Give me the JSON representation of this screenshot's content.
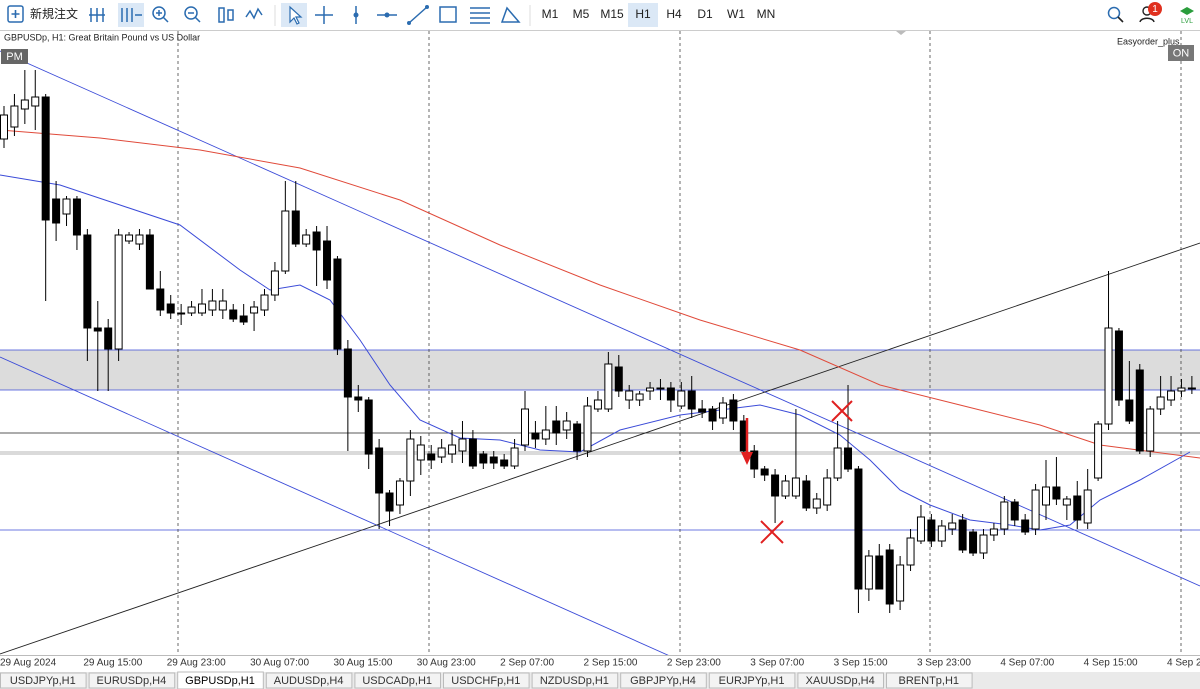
{
  "toolbar": {
    "new_order": "新規注文",
    "timeframes": [
      "M1",
      "M5",
      "M15",
      "H1",
      "H4",
      "D1",
      "W1",
      "MN"
    ],
    "active_timeframe": 3,
    "notifications": 1
  },
  "chart_header": {
    "symbol": "GBPUSDp, H1:  Great Britain Pound vs US Dollar",
    "expert": "Easyorder_plus",
    "left_badge": "PM",
    "right_badge": "ON"
  },
  "chart_data": {
    "type": "candlestick",
    "categories": [
      "29 Aug 2024",
      null,
      null,
      null,
      null,
      null,
      null,
      null,
      "29 Aug 15:00",
      null,
      null,
      null,
      null,
      null,
      null,
      null,
      "29 Aug 23:00",
      null,
      null,
      null,
      null,
      null,
      null,
      null,
      "30 Aug 07:00",
      null,
      null,
      null,
      null,
      null,
      null,
      null,
      "30 Aug 15:00",
      null,
      null,
      null,
      null,
      null,
      null,
      null,
      "30 Aug 23:00",
      null,
      null,
      null,
      null,
      null,
      null,
      null,
      "2 Sep 07:00",
      null,
      null,
      null,
      null,
      null,
      null,
      null,
      "2 Sep 15:00",
      null,
      null,
      null,
      null,
      null,
      null,
      null,
      "2 Sep 23:00",
      null,
      null,
      null,
      null,
      null,
      null,
      null,
      "3 Sep 07:00",
      null,
      null,
      null,
      null,
      null,
      null,
      null,
      "3 Sep 15:00",
      null,
      null,
      null,
      null,
      null,
      null,
      null,
      "3 Sep 23:00",
      null,
      null,
      null,
      null,
      null,
      null,
      null,
      "4 Sep 07:00",
      null,
      null,
      null,
      null,
      null,
      null,
      null,
      "4 Sep 15:00",
      null,
      null,
      null,
      null,
      null,
      null,
      null,
      "4 Sep 2",
      null,
      null
    ],
    "open": [
      1.3257,
      1.3261,
      1.3267,
      1.3268,
      1.3271,
      1.3237,
      1.3232,
      1.3237,
      1.3225,
      1.3194,
      1.3194,
      1.3187,
      1.3223,
      1.3222,
      1.3225,
      1.3207,
      1.3202,
      1.3199,
      1.3199,
      1.3199,
      1.32,
      1.32,
      1.32,
      1.3198,
      1.3199,
      1.32,
      1.3205,
      1.3213,
      1.3233,
      1.3222,
      1.3226,
      1.3223,
      1.3217,
      1.3187,
      1.3171,
      1.317,
      1.3154,
      1.3139,
      1.3135,
      1.3143,
      1.315,
      1.3152,
      1.3151,
      1.3152,
      1.3153,
      1.3157,
      1.3152,
      1.3151,
      1.315,
      1.3148,
      1.3155,
      1.3159,
      1.3157,
      1.3163,
      1.316,
      1.3162,
      1.3153,
      1.3167,
      1.3167,
      1.3181,
      1.317,
      1.317,
      1.3173,
      1.3174,
      1.3174,
      1.3168,
      1.3173,
      1.3167,
      1.3167,
      1.3164,
      1.317,
      1.3163,
      1.3153,
      1.3147,
      1.3145,
      1.3138,
      1.3138,
      1.3143,
      1.3134,
      1.3135,
      1.3144,
      1.3154,
      1.3147,
      1.3107,
      1.3118,
      1.312,
      1.3103,
      1.3115,
      1.3123,
      1.313,
      1.3123,
      1.3127,
      1.313,
      1.3126,
      1.3119,
      1.3125,
      1.3127,
      1.3136,
      1.313,
      1.3127,
      1.3135,
      1.3141,
      1.3135,
      1.3138,
      1.3129,
      1.3144,
      1.3162,
      1.3193,
      1.317,
      1.318,
      1.3153,
      1.3167,
      1.317,
      1.3173,
      1.3174
    ],
    "high": [
      1.3268,
      1.3272,
      1.328,
      1.328,
      1.3272,
      1.3243,
      1.3238,
      1.3238,
      1.3227,
      1.3203,
      1.3197,
      1.3227,
      1.3226,
      1.3227,
      1.3227,
      1.3213,
      1.3205,
      1.3202,
      1.3203,
      1.3207,
      1.3207,
      1.3207,
      1.3202,
      1.3202,
      1.3203,
      1.3207,
      1.3216,
      1.3243,
      1.3243,
      1.3227,
      1.3228,
      1.3228,
      1.3218,
      1.319,
      1.3175,
      1.3171,
      1.3157,
      1.314,
      1.3144,
      1.316,
      1.3158,
      1.3155,
      1.3157,
      1.316,
      1.3163,
      1.316,
      1.3153,
      1.3153,
      1.3152,
      1.3157,
      1.3173,
      1.3163,
      1.3168,
      1.3168,
      1.3166,
      1.3163,
      1.3171,
      1.3173,
      1.3186,
      1.3185,
      1.3175,
      1.3173,
      1.3176,
      1.3177,
      1.3176,
      1.3176,
      1.3178,
      1.317,
      1.3168,
      1.3171,
      1.3172,
      1.3165,
      1.3155,
      1.3148,
      1.3147,
      1.3145,
      1.3167,
      1.3145,
      1.3139,
      1.3147,
      1.3163,
      1.3175,
      1.3148,
      1.312,
      1.3122,
      1.3122,
      1.3118,
      1.3127,
      1.3135,
      1.3132,
      1.313,
      1.3132,
      1.3132,
      1.3127,
      1.3127,
      1.3129,
      1.3138,
      1.3137,
      1.3132,
      1.3142,
      1.315,
      1.3151,
      1.3138,
      1.3143,
      1.3147,
      1.3163,
      1.3213,
      1.3194,
      1.3183,
      1.3182,
      1.3168,
      1.3178,
      1.3178,
      1.3177,
      1.3178
    ],
    "low": [
      1.3254,
      1.3258,
      1.3262,
      1.326,
      1.3203,
      1.3223,
      1.3228,
      1.322,
      1.3183,
      1.3173,
      1.3173,
      1.3183,
      1.3222,
      1.322,
      1.3207,
      1.3198,
      1.3197,
      1.3195,
      1.3198,
      1.3198,
      1.3198,
      1.3197,
      1.3196,
      1.3195,
      1.3193,
      1.3198,
      1.3203,
      1.3212,
      1.3221,
      1.3221,
      1.3208,
      1.3207,
      1.3185,
      1.3153,
      1.3166,
      1.3147,
      1.3127,
      1.3128,
      1.3132,
      1.3138,
      1.3145,
      1.3147,
      1.3149,
      1.3149,
      1.3149,
      1.3147,
      1.3147,
      1.3147,
      1.3147,
      1.3147,
      1.3153,
      1.3154,
      1.3155,
      1.3155,
      1.3157,
      1.315,
      1.3151,
      1.3166,
      1.3166,
      1.3171,
      1.3167,
      1.3168,
      1.317,
      1.317,
      1.3166,
      1.3167,
      1.3164,
      1.3164,
      1.316,
      1.3162,
      1.316,
      1.3152,
      1.3144,
      1.3143,
      1.3129,
      1.3137,
      1.3137,
      1.3133,
      1.3132,
      1.3133,
      1.3143,
      1.3146,
      1.3099,
      1.3103,
      1.3107,
      1.3099,
      1.31,
      1.3113,
      1.3122,
      1.3121,
      1.3121,
      1.3125,
      1.3119,
      1.3118,
      1.3117,
      1.3123,
      1.3125,
      1.3128,
      1.3125,
      1.3125,
      1.313,
      1.3135,
      1.313,
      1.3127,
      1.3127,
      1.3143,
      1.316,
      1.3168,
      1.3162,
      1.3152,
      1.3151,
      1.3165,
      1.3168,
      1.3171,
      1.3172
    ],
    "close": [
      1.3265,
      1.3268,
      1.327,
      1.3271,
      1.323,
      1.3229,
      1.3237,
      1.3225,
      1.3194,
      1.3193,
      1.3187,
      1.3225,
      1.3225,
      1.3225,
      1.3207,
      1.32,
      1.3199,
      1.3199,
      1.3201,
      1.3202,
      1.3203,
      1.3203,
      1.3197,
      1.3196,
      1.3201,
      1.3205,
      1.3213,
      1.3233,
      1.3222,
      1.3225,
      1.322,
      1.321,
      1.3187,
      1.3171,
      1.317,
      1.3152,
      1.3139,
      1.3133,
      1.3143,
      1.3157,
      1.3155,
      1.315,
      1.3154,
      1.3155,
      1.3157,
      1.3148,
      1.3149,
      1.3149,
      1.3148,
      1.3154,
      1.3167,
      1.3157,
      1.316,
      1.3159,
      1.3163,
      1.3153,
      1.3168,
      1.317,
      1.3182,
      1.3173,
      1.3173,
      1.3172,
      1.3174,
      1.3174,
      1.317,
      1.3173,
      1.3167,
      1.3166,
      1.3163,
      1.3169,
      1.3163,
      1.3153,
      1.3147,
      1.3145,
      1.3138,
      1.3143,
      1.3144,
      1.3134,
      1.3137,
      1.3144,
      1.3154,
      1.3147,
      1.3107,
      1.3118,
      1.3107,
      1.3102,
      1.3115,
      1.3124,
      1.3131,
      1.3123,
      1.3128,
      1.3129,
      1.312,
      1.3119,
      1.3125,
      1.3127,
      1.3136,
      1.313,
      1.3126,
      1.314,
      1.3141,
      1.3137,
      1.3137,
      1.313,
      1.314,
      1.3162,
      1.3194,
      1.317,
      1.3163,
      1.3153,
      1.3167,
      1.3171,
      1.3173,
      1.3174,
      1.3174
    ],
    "ylim": [
      1.309,
      1.329
    ]
  },
  "tabs": [
    "USDJPYp,H1",
    "EURUSDp,H4",
    "GBPUSDp,H1",
    "AUDUSDp,H4",
    "USDCADp,H1",
    "USDCHFp,H1",
    "NZDUSDp,H1",
    "GBPJPYp,H4",
    "EURJPYp,H1",
    "XAUUSDp,H4",
    "BRENTp,H1"
  ],
  "active_tab": 2
}
